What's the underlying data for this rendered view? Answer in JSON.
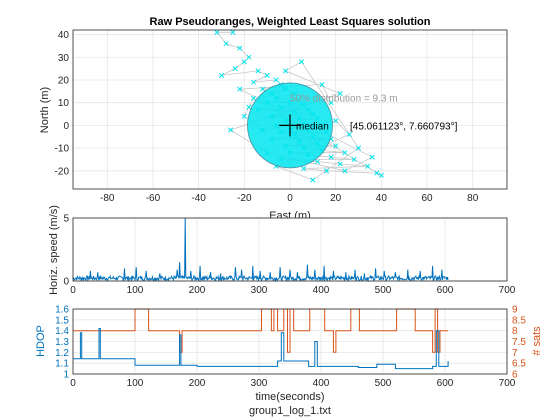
{
  "footer_text": "group1_log_1.txt",
  "chart_data": [
    {
      "type": "scatter",
      "title": "Raw Pseudoranges, Weighted Least Squares solution",
      "xlabel": "East (m)",
      "ylabel": "North (m)",
      "xlim": [
        -95,
        95
      ],
      "ylim": [
        -28,
        42
      ],
      "xticks": [
        -80,
        -60,
        -40,
        -20,
        0,
        20,
        40,
        60,
        80
      ],
      "yticks": [
        -20,
        -10,
        0,
        10,
        20,
        30,
        40
      ],
      "grid": true,
      "point_color": "#00e5ee",
      "track_color": "#c8c8c8",
      "circle": {
        "center": [
          0,
          0
        ],
        "radius_m": 9.3,
        "label": "50% distribution = 9.3 m"
      },
      "median": {
        "label": "median",
        "coords_text": "[45.061123°, 7.660793°]",
        "x": 0,
        "y": 0
      },
      "points": [
        [
          -25,
          41
        ],
        [
          -32,
          41
        ],
        [
          -28,
          36
        ],
        [
          -22,
          34
        ],
        [
          -18,
          30
        ],
        [
          -20,
          28
        ],
        [
          -24,
          25
        ],
        [
          -30,
          22
        ],
        [
          -14,
          24
        ],
        [
          -10,
          22
        ],
        [
          -16,
          19
        ],
        [
          -6,
          20
        ],
        [
          -4,
          18
        ],
        [
          -12,
          16
        ],
        [
          -8,
          14
        ],
        [
          -2,
          16
        ],
        [
          2,
          14
        ],
        [
          -6,
          12
        ],
        [
          4,
          11
        ],
        [
          -10,
          10
        ],
        [
          0,
          10
        ],
        [
          6,
          9
        ],
        [
          -4,
          8
        ],
        [
          8,
          7
        ],
        [
          -14,
          7
        ],
        [
          2,
          6
        ],
        [
          10,
          5
        ],
        [
          -8,
          4
        ],
        [
          4,
          3
        ],
        [
          12,
          3
        ],
        [
          -2,
          2
        ],
        [
          6,
          1
        ],
        [
          -6,
          0
        ],
        [
          14,
          0
        ],
        [
          0,
          -1
        ],
        [
          8,
          -2
        ],
        [
          -4,
          -3
        ],
        [
          16,
          -3
        ],
        [
          2,
          -4
        ],
        [
          10,
          -5
        ],
        [
          -8,
          -6
        ],
        [
          18,
          -6
        ],
        [
          4,
          -7
        ],
        [
          12,
          -8
        ],
        [
          -2,
          -9
        ],
        [
          20,
          -9
        ],
        [
          6,
          -10
        ],
        [
          14,
          -11
        ],
        [
          24,
          -12
        ],
        [
          0,
          -12
        ],
        [
          8,
          -13
        ],
        [
          18,
          -14
        ],
        [
          28,
          -15
        ],
        [
          -4,
          -15
        ],
        [
          12,
          -16
        ],
        [
          22,
          -17
        ],
        [
          34,
          -18
        ],
        [
          6,
          -19
        ],
        [
          16,
          -20
        ],
        [
          38,
          -21
        ],
        [
          40,
          -22
        ],
        [
          -16,
          12
        ],
        [
          -18,
          8
        ],
        [
          -20,
          4
        ],
        [
          -12,
          -2
        ],
        [
          20,
          2
        ],
        [
          26,
          -4
        ],
        [
          -6,
          -18
        ],
        [
          10,
          -24
        ],
        [
          30,
          -10
        ],
        [
          5,
          28
        ],
        [
          -2,
          24
        ],
        [
          22,
          14
        ],
        [
          -26,
          -2
        ],
        [
          -10,
          -12
        ],
        [
          24,
          -20
        ],
        [
          36,
          -14
        ],
        [
          -22,
          16
        ],
        [
          14,
          18
        ],
        [
          18,
          10
        ]
      ]
    },
    {
      "type": "line",
      "xlabel": "",
      "ylabel": "Horiz. speed (m/s)",
      "xlim": [
        0,
        700
      ],
      "ylim": [
        0,
        5
      ],
      "xticks": [
        0,
        100,
        200,
        300,
        400,
        500,
        600,
        700
      ],
      "yticks": [
        0,
        5
      ],
      "grid": true,
      "line_color": "#0072bd",
      "t_range": [
        0,
        605
      ],
      "peaks": [
        [
          28,
          0.8
        ],
        [
          40,
          0.7
        ],
        [
          83,
          1.0
        ],
        [
          102,
          1.1
        ],
        [
          118,
          0.8
        ],
        [
          140,
          0.6
        ],
        [
          168,
          0.9
        ],
        [
          172,
          1.5
        ],
        [
          181,
          5.0
        ],
        [
          190,
          0.8
        ],
        [
          205,
          1.2
        ],
        [
          222,
          0.7
        ],
        [
          238,
          0.6
        ],
        [
          262,
          1.1
        ],
        [
          272,
          0.9
        ],
        [
          290,
          1.2
        ],
        [
          302,
          0.8
        ],
        [
          318,
          0.7
        ],
        [
          334,
          1.1
        ],
        [
          350,
          0.9
        ],
        [
          362,
          0.7
        ],
        [
          378,
          1.3
        ],
        [
          390,
          0.9
        ],
        [
          405,
          1.2
        ],
        [
          420,
          0.8
        ],
        [
          440,
          0.7
        ],
        [
          455,
          0.9
        ],
        [
          470,
          0.6
        ],
        [
          488,
          1.0
        ],
        [
          502,
          0.8
        ],
        [
          520,
          0.7
        ],
        [
          540,
          0.9
        ],
        [
          560,
          0.8
        ],
        [
          580,
          1.2
        ],
        [
          595,
          0.9
        ]
      ]
    },
    {
      "type": "line",
      "title": "",
      "xlabel": "time(seconds)",
      "ylabel": "HDOP",
      "y2label": "# sats",
      "xlim": [
        0,
        700
      ],
      "ylim": [
        1,
        1.6
      ],
      "y2lim": [
        6,
        9
      ],
      "xticks": [
        0,
        100,
        200,
        300,
        400,
        500,
        600,
        700
      ],
      "yticks": [
        1,
        1.1,
        1.2,
        1.3,
        1.4,
        1.5,
        1.6
      ],
      "y2ticks": [
        6,
        6.5,
        7,
        7.5,
        8,
        8.5,
        9
      ],
      "grid": true,
      "series": [
        {
          "name": "HDOP",
          "color": "#0072bd",
          "segments": [
            [
              0,
              1.14
            ],
            [
              10,
              1.14
            ],
            [
              12,
              1.38
            ],
            [
              14,
              1.14
            ],
            [
              40,
              1.14
            ],
            [
              42,
              1.42
            ],
            [
              44,
              1.14
            ],
            [
              90,
              1.14
            ],
            [
              100,
              1.08
            ],
            [
              170,
              1.08
            ],
            [
              172,
              1.36
            ],
            [
              174,
              1.08
            ],
            [
              200,
              1.07
            ],
            [
              300,
              1.07
            ],
            [
              330,
              1.12
            ],
            [
              336,
              1.38
            ],
            [
              340,
              1.12
            ],
            [
              380,
              1.07
            ],
            [
              390,
              1.3
            ],
            [
              394,
              1.07
            ],
            [
              460,
              1.06
            ],
            [
              490,
              1.09
            ],
            [
              520,
              1.05
            ],
            [
              580,
              1.07
            ],
            [
              586,
              1.4
            ],
            [
              590,
              1.07
            ],
            [
              605,
              1.12
            ]
          ]
        },
        {
          "name": "# sats",
          "color": "#d95319",
          "segments": [
            [
              0,
              8
            ],
            [
              98,
              8
            ],
            [
              100,
              9
            ],
            [
              120,
              9
            ],
            [
              122,
              8
            ],
            [
              170,
              8
            ],
            [
              172,
              7
            ],
            [
              176,
              8
            ],
            [
              200,
              8
            ],
            [
              300,
              8
            ],
            [
              304,
              9
            ],
            [
              318,
              9
            ],
            [
              320,
              8
            ],
            [
              324,
              9
            ],
            [
              330,
              8
            ],
            [
              340,
              9
            ],
            [
              346,
              7
            ],
            [
              350,
              9
            ],
            [
              356,
              8
            ],
            [
              380,
              8
            ],
            [
              382,
              9
            ],
            [
              404,
              9
            ],
            [
              406,
              8
            ],
            [
              420,
              7
            ],
            [
              424,
              8
            ],
            [
              445,
              8
            ],
            [
              448,
              9
            ],
            [
              460,
              9
            ],
            [
              462,
              8
            ],
            [
              520,
              8
            ],
            [
              522,
              9
            ],
            [
              550,
              9
            ],
            [
              552,
              8
            ],
            [
              575,
              8
            ],
            [
              580,
              7
            ],
            [
              584,
              9
            ],
            [
              588,
              7
            ],
            [
              592,
              8
            ],
            [
              605,
              8
            ]
          ]
        }
      ]
    }
  ]
}
